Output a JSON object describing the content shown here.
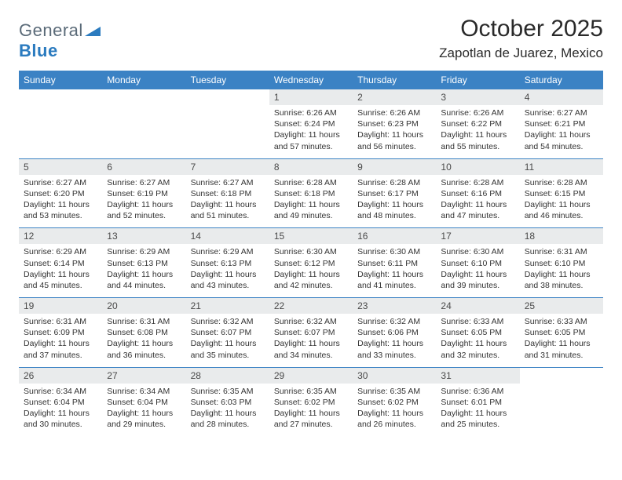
{
  "brand": {
    "part1": "General",
    "part2": "Blue"
  },
  "title": "October 2025",
  "location": "Zapotlan de Juarez, Mexico",
  "colors": {
    "header_bg": "#3b82c4",
    "header_text": "#ffffff",
    "daynum_bg": "#e9ebec",
    "week_sep": "#3b82c4",
    "body_text": "#333333",
    "logo_gray": "#5a6a78",
    "logo_blue": "#2b7bbf"
  },
  "day_headers": [
    "Sunday",
    "Monday",
    "Tuesday",
    "Wednesday",
    "Thursday",
    "Friday",
    "Saturday"
  ],
  "weeks": [
    [
      {
        "n": "",
        "lines": [
          "",
          "",
          "",
          ""
        ]
      },
      {
        "n": "",
        "lines": [
          "",
          "",
          "",
          ""
        ]
      },
      {
        "n": "",
        "lines": [
          "",
          "",
          "",
          ""
        ]
      },
      {
        "n": "1",
        "lines": [
          "Sunrise: 6:26 AM",
          "Sunset: 6:24 PM",
          "Daylight: 11 hours",
          "and 57 minutes."
        ]
      },
      {
        "n": "2",
        "lines": [
          "Sunrise: 6:26 AM",
          "Sunset: 6:23 PM",
          "Daylight: 11 hours",
          "and 56 minutes."
        ]
      },
      {
        "n": "3",
        "lines": [
          "Sunrise: 6:26 AM",
          "Sunset: 6:22 PM",
          "Daylight: 11 hours",
          "and 55 minutes."
        ]
      },
      {
        "n": "4",
        "lines": [
          "Sunrise: 6:27 AM",
          "Sunset: 6:21 PM",
          "Daylight: 11 hours",
          "and 54 minutes."
        ]
      }
    ],
    [
      {
        "n": "5",
        "lines": [
          "Sunrise: 6:27 AM",
          "Sunset: 6:20 PM",
          "Daylight: 11 hours",
          "and 53 minutes."
        ]
      },
      {
        "n": "6",
        "lines": [
          "Sunrise: 6:27 AM",
          "Sunset: 6:19 PM",
          "Daylight: 11 hours",
          "and 52 minutes."
        ]
      },
      {
        "n": "7",
        "lines": [
          "Sunrise: 6:27 AM",
          "Sunset: 6:18 PM",
          "Daylight: 11 hours",
          "and 51 minutes."
        ]
      },
      {
        "n": "8",
        "lines": [
          "Sunrise: 6:28 AM",
          "Sunset: 6:18 PM",
          "Daylight: 11 hours",
          "and 49 minutes."
        ]
      },
      {
        "n": "9",
        "lines": [
          "Sunrise: 6:28 AM",
          "Sunset: 6:17 PM",
          "Daylight: 11 hours",
          "and 48 minutes."
        ]
      },
      {
        "n": "10",
        "lines": [
          "Sunrise: 6:28 AM",
          "Sunset: 6:16 PM",
          "Daylight: 11 hours",
          "and 47 minutes."
        ]
      },
      {
        "n": "11",
        "lines": [
          "Sunrise: 6:28 AM",
          "Sunset: 6:15 PM",
          "Daylight: 11 hours",
          "and 46 minutes."
        ]
      }
    ],
    [
      {
        "n": "12",
        "lines": [
          "Sunrise: 6:29 AM",
          "Sunset: 6:14 PM",
          "Daylight: 11 hours",
          "and 45 minutes."
        ]
      },
      {
        "n": "13",
        "lines": [
          "Sunrise: 6:29 AM",
          "Sunset: 6:13 PM",
          "Daylight: 11 hours",
          "and 44 minutes."
        ]
      },
      {
        "n": "14",
        "lines": [
          "Sunrise: 6:29 AM",
          "Sunset: 6:13 PM",
          "Daylight: 11 hours",
          "and 43 minutes."
        ]
      },
      {
        "n": "15",
        "lines": [
          "Sunrise: 6:30 AM",
          "Sunset: 6:12 PM",
          "Daylight: 11 hours",
          "and 42 minutes."
        ]
      },
      {
        "n": "16",
        "lines": [
          "Sunrise: 6:30 AM",
          "Sunset: 6:11 PM",
          "Daylight: 11 hours",
          "and 41 minutes."
        ]
      },
      {
        "n": "17",
        "lines": [
          "Sunrise: 6:30 AM",
          "Sunset: 6:10 PM",
          "Daylight: 11 hours",
          "and 39 minutes."
        ]
      },
      {
        "n": "18",
        "lines": [
          "Sunrise: 6:31 AM",
          "Sunset: 6:10 PM",
          "Daylight: 11 hours",
          "and 38 minutes."
        ]
      }
    ],
    [
      {
        "n": "19",
        "lines": [
          "Sunrise: 6:31 AM",
          "Sunset: 6:09 PM",
          "Daylight: 11 hours",
          "and 37 minutes."
        ]
      },
      {
        "n": "20",
        "lines": [
          "Sunrise: 6:31 AM",
          "Sunset: 6:08 PM",
          "Daylight: 11 hours",
          "and 36 minutes."
        ]
      },
      {
        "n": "21",
        "lines": [
          "Sunrise: 6:32 AM",
          "Sunset: 6:07 PM",
          "Daylight: 11 hours",
          "and 35 minutes."
        ]
      },
      {
        "n": "22",
        "lines": [
          "Sunrise: 6:32 AM",
          "Sunset: 6:07 PM",
          "Daylight: 11 hours",
          "and 34 minutes."
        ]
      },
      {
        "n": "23",
        "lines": [
          "Sunrise: 6:32 AM",
          "Sunset: 6:06 PM",
          "Daylight: 11 hours",
          "and 33 minutes."
        ]
      },
      {
        "n": "24",
        "lines": [
          "Sunrise: 6:33 AM",
          "Sunset: 6:05 PM",
          "Daylight: 11 hours",
          "and 32 minutes."
        ]
      },
      {
        "n": "25",
        "lines": [
          "Sunrise: 6:33 AM",
          "Sunset: 6:05 PM",
          "Daylight: 11 hours",
          "and 31 minutes."
        ]
      }
    ],
    [
      {
        "n": "26",
        "lines": [
          "Sunrise: 6:34 AM",
          "Sunset: 6:04 PM",
          "Daylight: 11 hours",
          "and 30 minutes."
        ]
      },
      {
        "n": "27",
        "lines": [
          "Sunrise: 6:34 AM",
          "Sunset: 6:04 PM",
          "Daylight: 11 hours",
          "and 29 minutes."
        ]
      },
      {
        "n": "28",
        "lines": [
          "Sunrise: 6:35 AM",
          "Sunset: 6:03 PM",
          "Daylight: 11 hours",
          "and 28 minutes."
        ]
      },
      {
        "n": "29",
        "lines": [
          "Sunrise: 6:35 AM",
          "Sunset: 6:02 PM",
          "Daylight: 11 hours",
          "and 27 minutes."
        ]
      },
      {
        "n": "30",
        "lines": [
          "Sunrise: 6:35 AM",
          "Sunset: 6:02 PM",
          "Daylight: 11 hours",
          "and 26 minutes."
        ]
      },
      {
        "n": "31",
        "lines": [
          "Sunrise: 6:36 AM",
          "Sunset: 6:01 PM",
          "Daylight: 11 hours",
          "and 25 minutes."
        ]
      },
      {
        "n": "",
        "lines": [
          "",
          "",
          "",
          ""
        ]
      }
    ]
  ]
}
